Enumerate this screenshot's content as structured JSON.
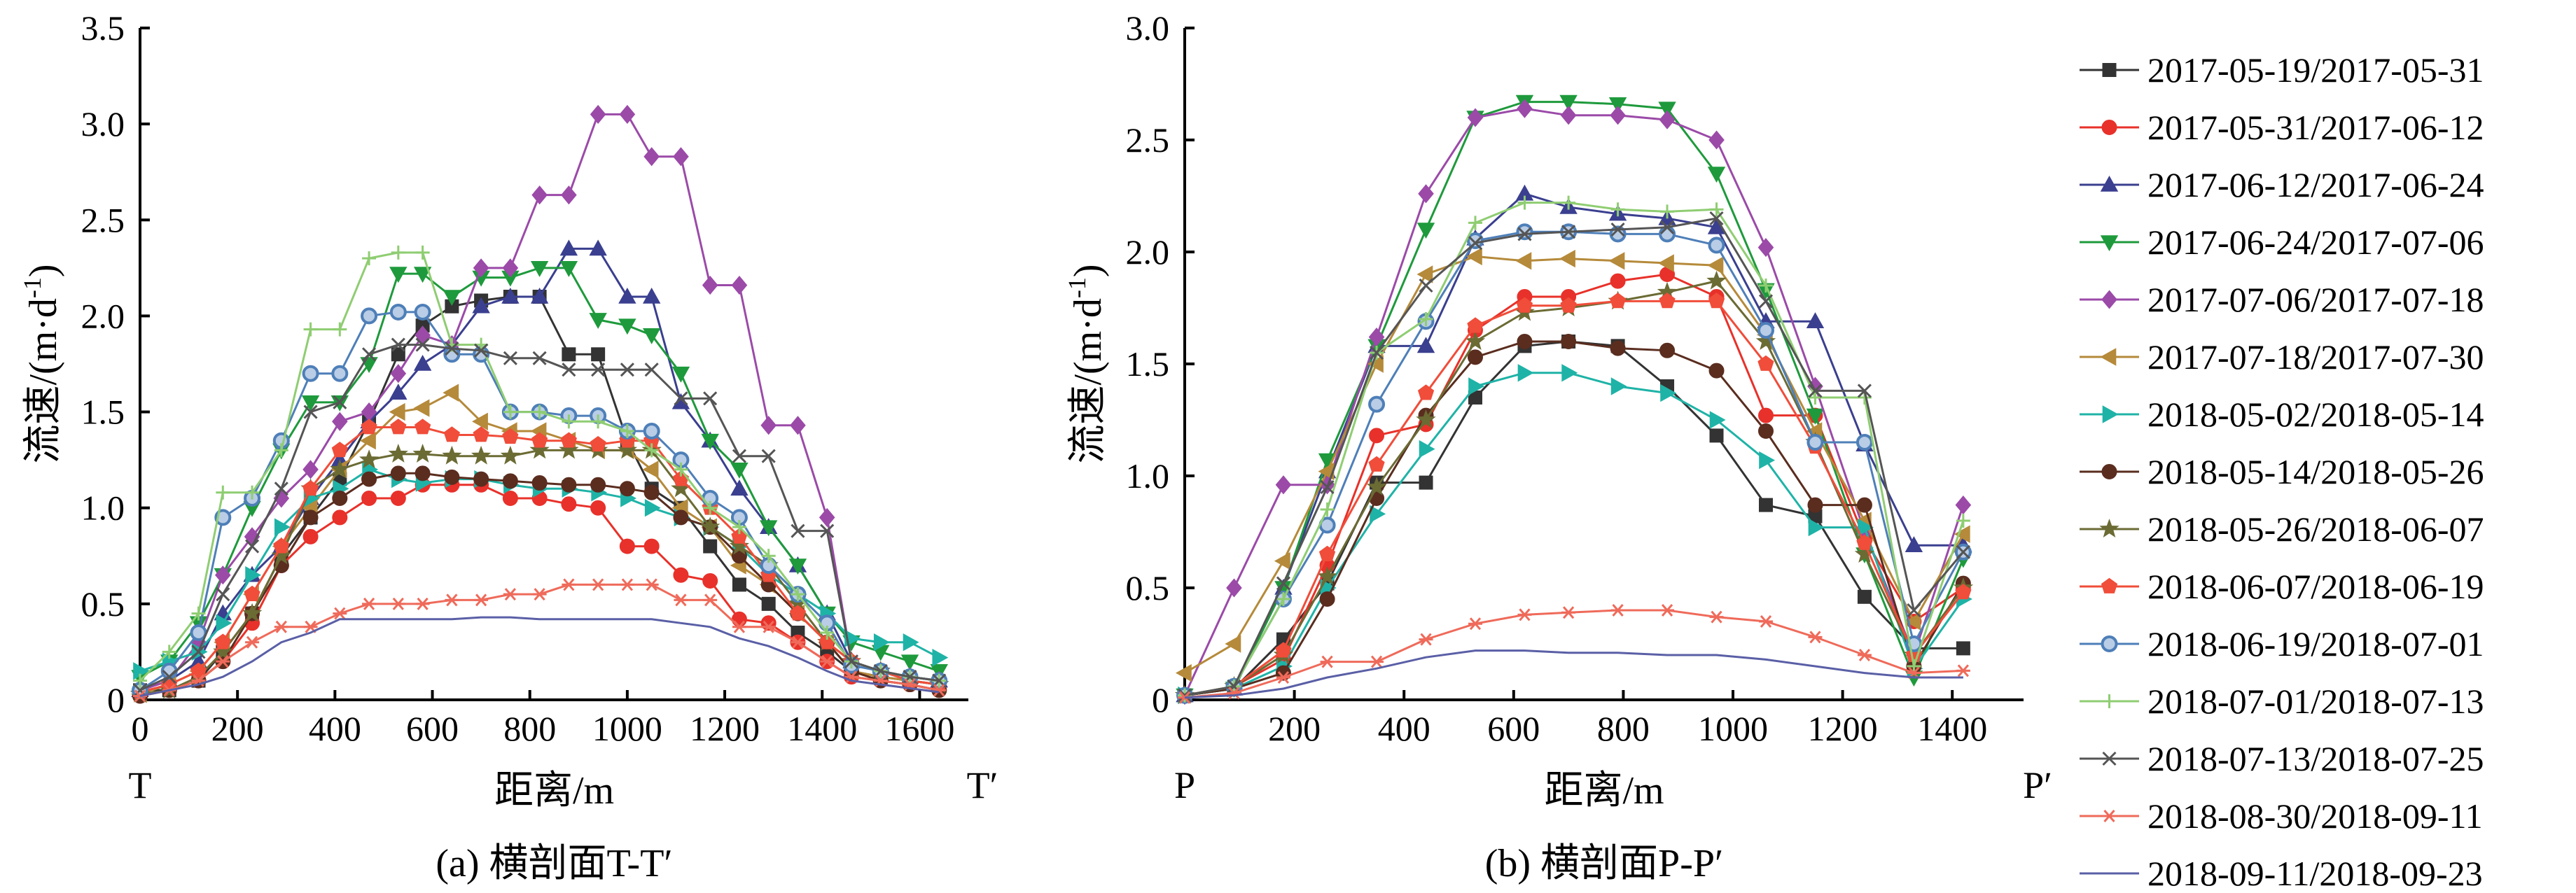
{
  "chart_data": [
    {
      "type": "line",
      "caption": "(a) 横剖面T-T′",
      "xlabel": "距离/m",
      "ylabel": "流速/(m·d-1)",
      "ylabel_parts": [
        "流速/(m·d",
        "-1",
        ")"
      ],
      "left_end_label": "T",
      "right_end_label": "T′",
      "xlim": [
        0,
        1700
      ],
      "ylim": [
        0,
        3.5
      ],
      "xticks": [
        0,
        200,
        400,
        600,
        800,
        1000,
        1200,
        1400,
        1600
      ],
      "yticks": [
        0,
        0.5,
        1.0,
        1.5,
        2.0,
        2.5,
        3.0,
        3.5
      ],
      "ytick_labels": [
        "0",
        "0.5",
        "1.0",
        "1.5",
        "2.0",
        "2.5",
        "3.0",
        "3.5"
      ],
      "grid": false,
      "x": [
        0,
        60,
        120,
        170,
        230,
        290,
        350,
        410,
        470,
        530,
        580,
        640,
        700,
        760,
        820,
        880,
        940,
        1000,
        1050,
        1110,
        1170,
        1230,
        1290,
        1350,
        1410,
        1460,
        1520,
        1580,
        1640
      ],
      "series": [
        {
          "name": "2017-05-19/2017-05-31",
          "color": "#333333",
          "marker": "square",
          "values": [
            0.05,
            0.05,
            0.1,
            0.25,
            0.45,
            0.75,
            0.95,
            1.15,
            1.45,
            1.8,
            1.95,
            2.05,
            2.08,
            2.1,
            2.1,
            1.8,
            1.8,
            1.35,
            1.1,
            1.0,
            0.8,
            0.6,
            0.5,
            0.35,
            0.25,
            0.15,
            0.12,
            0.1,
            0.08
          ]
        },
        {
          "name": "2017-05-31/2017-06-12",
          "color": "#e8312a",
          "marker": "circle",
          "values": [
            0.02,
            0.05,
            0.1,
            0.2,
            0.4,
            0.7,
            0.85,
            0.95,
            1.05,
            1.05,
            1.12,
            1.12,
            1.12,
            1.05,
            1.05,
            1.02,
            1.0,
            0.8,
            0.8,
            0.65,
            0.62,
            0.42,
            0.4,
            0.3,
            0.2,
            0.12,
            0.1,
            0.08,
            0.05
          ]
        },
        {
          "name": "2017-06-12/2017-06-24",
          "color": "#3a3f8f",
          "marker": "triangle-up",
          "values": [
            0.05,
            0.1,
            0.2,
            0.45,
            0.65,
            0.8,
            1.05,
            1.25,
            1.45,
            1.6,
            1.75,
            1.85,
            2.05,
            2.1,
            2.1,
            2.35,
            2.35,
            2.1,
            2.1,
            1.55,
            1.35,
            1.1,
            0.9,
            0.7,
            0.45,
            0.2,
            0.15,
            0.12,
            0.1
          ]
        },
        {
          "name": "2017-06-24/2017-07-06",
          "color": "#1e9a3c",
          "marker": "triangle-down",
          "values": [
            0.12,
            0.2,
            0.4,
            0.65,
            1.0,
            1.3,
            1.55,
            1.55,
            1.75,
            2.22,
            2.22,
            2.1,
            2.2,
            2.2,
            2.25,
            2.25,
            1.98,
            1.95,
            1.9,
            1.7,
            1.35,
            1.2,
            0.9,
            0.7,
            0.45,
            0.3,
            0.25,
            0.2,
            0.15
          ]
        },
        {
          "name": "2017-07-06/2017-07-18",
          "color": "#9b4aa8",
          "marker": "diamond",
          "values": [
            0.05,
            0.1,
            0.3,
            0.65,
            0.85,
            1.05,
            1.2,
            1.45,
            1.5,
            1.7,
            1.9,
            1.85,
            2.25,
            2.25,
            2.63,
            2.63,
            3.05,
            3.05,
            2.83,
            2.83,
            2.16,
            2.16,
            1.43,
            1.43,
            0.95,
            0.2,
            0.15,
            0.12,
            0.1
          ]
        },
        {
          "name": "2017-07-18/2017-07-30",
          "color": "#b58a3a",
          "marker": "triangle-left",
          "values": [
            0.03,
            0.08,
            0.15,
            0.3,
            0.55,
            0.8,
            1.0,
            1.2,
            1.35,
            1.5,
            1.52,
            1.6,
            1.45,
            1.4,
            1.4,
            1.35,
            1.3,
            1.3,
            1.2,
            1.0,
            0.9,
            0.7,
            0.6,
            0.45,
            0.3,
            0.15,
            0.12,
            0.1,
            0.08
          ]
        },
        {
          "name": "2018-05-02/2018-05-14",
          "color": "#1fb3a7",
          "marker": "triangle-right",
          "values": [
            0.15,
            0.2,
            0.25,
            0.4,
            0.65,
            0.9,
            1.05,
            1.1,
            1.2,
            1.15,
            1.13,
            1.15,
            1.15,
            1.12,
            1.1,
            1.1,
            1.08,
            1.05,
            1.0,
            0.95,
            0.9,
            0.8,
            0.65,
            0.55,
            0.45,
            0.32,
            0.3,
            0.3,
            0.22
          ]
        },
        {
          "name": "2018-05-14/2018-05-26",
          "color": "#5a2d1f",
          "marker": "circle",
          "values": [
            0.02,
            0.05,
            0.1,
            0.2,
            0.45,
            0.7,
            0.95,
            1.05,
            1.15,
            1.18,
            1.18,
            1.16,
            1.15,
            1.14,
            1.13,
            1.12,
            1.12,
            1.1,
            1.08,
            0.95,
            0.9,
            0.75,
            0.6,
            0.45,
            0.3,
            0.15,
            0.1,
            0.08,
            0.05
          ]
        },
        {
          "name": "2018-05-26/2018-06-07",
          "color": "#6b6b34",
          "marker": "star",
          "values": [
            0.03,
            0.05,
            0.12,
            0.25,
            0.45,
            0.75,
            1.1,
            1.2,
            1.25,
            1.28,
            1.28,
            1.27,
            1.27,
            1.27,
            1.3,
            1.3,
            1.3,
            1.3,
            1.3,
            1.1,
            0.9,
            0.8,
            0.7,
            0.5,
            0.3,
            0.2,
            0.15,
            0.1,
            0.08
          ]
        },
        {
          "name": "2018-06-07/2018-06-19",
          "color": "#f04d3a",
          "marker": "pentagon",
          "values": [
            0.04,
            0.08,
            0.15,
            0.3,
            0.55,
            0.8,
            1.1,
            1.3,
            1.42,
            1.42,
            1.42,
            1.38,
            1.38,
            1.37,
            1.35,
            1.35,
            1.33,
            1.35,
            1.35,
            1.15,
            1.0,
            0.85,
            0.65,
            0.45,
            0.3,
            0.2,
            0.15,
            0.1,
            0.08
          ]
        },
        {
          "name": "2018-06-19/2018-07-01",
          "color": "#4e7fb8",
          "marker": "ring",
          "values": [
            0.05,
            0.15,
            0.35,
            0.95,
            1.05,
            1.35,
            1.7,
            1.7,
            2.0,
            2.02,
            2.02,
            1.8,
            1.8,
            1.5,
            1.5,
            1.48,
            1.48,
            1.4,
            1.4,
            1.25,
            1.05,
            0.95,
            0.7,
            0.55,
            0.4,
            0.18,
            0.15,
            0.12,
            0.1
          ]
        },
        {
          "name": "2018-07-01/2018-07-13",
          "color": "#8fcd72",
          "marker": "plus",
          "values": [
            0.1,
            0.25,
            0.45,
            1.08,
            1.08,
            1.3,
            1.93,
            1.93,
            2.3,
            2.33,
            2.33,
            1.85,
            1.85,
            1.5,
            1.5,
            1.45,
            1.45,
            1.4,
            1.3,
            1.2,
            1.0,
            0.9,
            0.75,
            0.55,
            0.35,
            0.2,
            0.15,
            0.12,
            0.1
          ]
        },
        {
          "name": "2018-07-13/2018-07-25",
          "color": "#555555",
          "marker": "x",
          "values": [
            0.05,
            0.12,
            0.25,
            0.55,
            0.8,
            1.1,
            1.5,
            1.55,
            1.8,
            1.85,
            1.85,
            1.83,
            1.82,
            1.78,
            1.78,
            1.72,
            1.72,
            1.72,
            1.72,
            1.57,
            1.57,
            1.27,
            1.27,
            0.88,
            0.88,
            0.2,
            0.15,
            0.12,
            0.1
          ]
        },
        {
          "name": "2018-08-30/2018-09-11",
          "color": "#ef6a5a",
          "marker": "asterisk",
          "values": [
            0.02,
            0.05,
            0.1,
            0.2,
            0.3,
            0.38,
            0.38,
            0.45,
            0.5,
            0.5,
            0.5,
            0.52,
            0.52,
            0.55,
            0.55,
            0.6,
            0.6,
            0.6,
            0.6,
            0.52,
            0.52,
            0.38,
            0.38,
            0.3,
            0.2,
            0.12,
            0.1,
            0.08,
            0.05
          ]
        },
        {
          "name": "2018-09-11/2018-09-23",
          "color": "#5a5fa6",
          "marker": "none",
          "values": [
            0.02,
            0.05,
            0.08,
            0.12,
            0.2,
            0.3,
            0.35,
            0.42,
            0.42,
            0.42,
            0.42,
            0.42,
            0.43,
            0.43,
            0.42,
            0.42,
            0.42,
            0.42,
            0.42,
            0.4,
            0.38,
            0.32,
            0.28,
            0.22,
            0.15,
            0.1,
            0.08,
            0.06,
            0.04
          ]
        }
      ]
    },
    {
      "type": "line",
      "caption": "(b) 横剖面P-P′",
      "xlabel": "距离/m",
      "ylabel": "流速/(m·d-1)",
      "ylabel_parts": [
        "流速/(m·d",
        "-1",
        ")"
      ],
      "left_end_label": "P",
      "right_end_label": "P′",
      "xlim": [
        0,
        1530
      ],
      "ylim": [
        0,
        3.0
      ],
      "xticks": [
        0,
        200,
        400,
        600,
        800,
        1000,
        1200,
        1400
      ],
      "yticks": [
        0,
        0.5,
        1.0,
        1.5,
        2.0,
        2.5,
        3.0
      ],
      "ytick_labels": [
        "0",
        "0.5",
        "1.0",
        "1.5",
        "2.0",
        "2.5",
        "3.0"
      ],
      "grid": false,
      "x": [
        0,
        90,
        180,
        260,
        350,
        440,
        530,
        620,
        700,
        790,
        880,
        970,
        1060,
        1150,
        1240,
        1330,
        1420
      ],
      "series": [
        {
          "name": "2017-05-19/2017-05-31",
          "color": "#333333",
          "marker": "square",
          "values": [
            0.02,
            0.05,
            0.27,
            0.52,
            0.97,
            0.97,
            1.35,
            1.58,
            1.6,
            1.58,
            1.4,
            1.18,
            0.87,
            0.82,
            0.46,
            0.23,
            0.23
          ]
        },
        {
          "name": "2017-05-31/2017-06-12",
          "color": "#e8312a",
          "marker": "circle",
          "values": [
            0.02,
            0.06,
            0.18,
            0.6,
            1.18,
            1.23,
            1.65,
            1.8,
            1.8,
            1.87,
            1.9,
            1.8,
            1.27,
            1.27,
            0.72,
            0.35,
            0.5
          ]
        },
        {
          "name": "2017-06-12/2017-06-24",
          "color": "#3a3f8f",
          "marker": "triangle-up",
          "values": [
            0.02,
            0.05,
            0.5,
            1.02,
            1.58,
            1.58,
            2.06,
            2.26,
            2.2,
            2.17,
            2.15,
            2.11,
            1.69,
            1.69,
            1.14,
            0.69,
            0.69
          ]
        },
        {
          "name": "2017-06-24/2017-07-06",
          "color": "#1e9a3c",
          "marker": "triangle-down",
          "values": [
            0.02,
            0.05,
            0.5,
            1.07,
            1.58,
            2.1,
            2.6,
            2.67,
            2.67,
            2.66,
            2.64,
            2.35,
            1.83,
            1.27,
            0.65,
            0.1,
            0.63
          ]
        },
        {
          "name": "2017-07-06/2017-07-18",
          "color": "#9b4aa8",
          "marker": "diamond",
          "values": [
            0.02,
            0.5,
            0.96,
            0.96,
            1.62,
            2.26,
            2.6,
            2.64,
            2.61,
            2.61,
            2.59,
            2.5,
            2.02,
            1.4,
            0.75,
            0.2,
            0.87
          ]
        },
        {
          "name": "2017-07-18/2017-07-30",
          "color": "#b58a3a",
          "marker": "triangle-left",
          "values": [
            0.12,
            0.25,
            0.62,
            1.02,
            1.5,
            1.9,
            1.98,
            1.96,
            1.97,
            1.96,
            1.95,
            1.94,
            1.63,
            1.2,
            0.8,
            0.35,
            0.74
          ]
        },
        {
          "name": "2018-05-02/2018-05-14",
          "color": "#1fb3a7",
          "marker": "triangle-right",
          "values": [
            0.02,
            0.05,
            0.15,
            0.5,
            0.83,
            1.12,
            1.4,
            1.46,
            1.46,
            1.4,
            1.37,
            1.25,
            1.07,
            0.77,
            0.77,
            0.14,
            0.45
          ]
        },
        {
          "name": "2018-05-14/2018-05-26",
          "color": "#5a2d1f",
          "marker": "circle",
          "values": [
            0.02,
            0.05,
            0.12,
            0.45,
            0.9,
            1.27,
            1.53,
            1.6,
            1.6,
            1.57,
            1.56,
            1.47,
            1.2,
            0.87,
            0.87,
            0.15,
            0.52
          ]
        },
        {
          "name": "2018-05-26/2018-06-07",
          "color": "#6b6b34",
          "marker": "star",
          "values": [
            0.02,
            0.06,
            0.2,
            0.55,
            0.95,
            1.25,
            1.6,
            1.73,
            1.75,
            1.78,
            1.82,
            1.87,
            1.6,
            1.15,
            0.65,
            0.2,
            0.5
          ]
        },
        {
          "name": "2018-06-07/2018-06-19",
          "color": "#f04d3a",
          "marker": "pentagon",
          "values": [
            0.02,
            0.06,
            0.22,
            0.65,
            1.05,
            1.37,
            1.67,
            1.76,
            1.76,
            1.78,
            1.78,
            1.78,
            1.5,
            1.13,
            0.7,
            0.2,
            0.48
          ]
        },
        {
          "name": "2018-06-19/2018-07-01",
          "color": "#4e7fb8",
          "marker": "ring",
          "values": [
            0.02,
            0.06,
            0.45,
            0.78,
            1.32,
            1.69,
            2.05,
            2.09,
            2.09,
            2.08,
            2.08,
            2.03,
            1.65,
            1.15,
            1.15,
            0.25,
            0.66
          ]
        },
        {
          "name": "2018-07-01/2018-07-13",
          "color": "#8fcd72",
          "marker": "plus",
          "values": [
            0.02,
            0.06,
            0.45,
            0.85,
            1.55,
            1.7,
            2.13,
            2.22,
            2.22,
            2.19,
            2.18,
            2.19,
            1.85,
            1.35,
            1.35,
            0.15,
            0.8
          ]
        },
        {
          "name": "2018-07-13/2018-07-25",
          "color": "#555555",
          "marker": "x",
          "values": [
            0.02,
            0.06,
            0.52,
            0.95,
            1.55,
            1.85,
            2.04,
            2.08,
            2.09,
            2.1,
            2.11,
            2.15,
            1.78,
            1.38,
            1.38,
            0.4,
            0.66
          ]
        },
        {
          "name": "2018-08-30/2018-09-11",
          "color": "#ef6a5a",
          "marker": "asterisk",
          "values": [
            0.01,
            0.03,
            0.1,
            0.17,
            0.17,
            0.27,
            0.34,
            0.38,
            0.39,
            0.4,
            0.4,
            0.37,
            0.35,
            0.28,
            0.2,
            0.12,
            0.13
          ]
        },
        {
          "name": "2018-09-11/2018-09-23",
          "color": "#5a5fa6",
          "marker": "none",
          "values": [
            0.01,
            0.02,
            0.05,
            0.1,
            0.14,
            0.19,
            0.22,
            0.22,
            0.21,
            0.21,
            0.2,
            0.2,
            0.18,
            0.15,
            0.12,
            0.1,
            0.1
          ]
        }
      ]
    }
  ]
}
